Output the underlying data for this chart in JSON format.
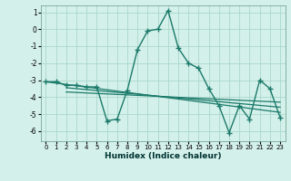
{
  "xlabel": "Humidex (Indice chaleur)",
  "bg_color": "#d4f0ea",
  "grid_color": "#a8d8cc",
  "line_color": "#1a7a6a",
  "xlim": [
    -0.5,
    23.5
  ],
  "ylim": [
    -6.6,
    1.4
  ],
  "yticks": [
    1,
    0,
    -1,
    -2,
    -3,
    -4,
    -5,
    -6
  ],
  "xticks": [
    0,
    1,
    2,
    3,
    4,
    5,
    6,
    7,
    8,
    9,
    10,
    11,
    12,
    13,
    14,
    15,
    16,
    17,
    18,
    19,
    20,
    21,
    22,
    23
  ],
  "curve1_x": [
    0,
    1,
    2,
    3,
    4,
    5,
    6,
    7,
    8,
    9,
    10,
    11,
    12,
    13,
    14,
    15,
    16,
    17,
    18,
    19,
    20,
    21,
    22,
    23
  ],
  "curve1_y": [
    -3.1,
    -3.1,
    -3.3,
    -3.3,
    -3.4,
    -3.4,
    -5.4,
    -5.3,
    -3.6,
    -1.2,
    -0.1,
    0.0,
    1.1,
    -1.1,
    -2.0,
    -2.3,
    -3.5,
    -4.5,
    -6.1,
    -4.5,
    -5.3,
    -3.0,
    -3.5,
    -5.2
  ],
  "line1_x": [
    0,
    23
  ],
  "line1_y": [
    -3.1,
    -4.9
  ],
  "line2_x": [
    2,
    23
  ],
  "line2_y": [
    -3.45,
    -4.6
  ],
  "line3_x": [
    2,
    23
  ],
  "line3_y": [
    -3.7,
    -4.3
  ]
}
